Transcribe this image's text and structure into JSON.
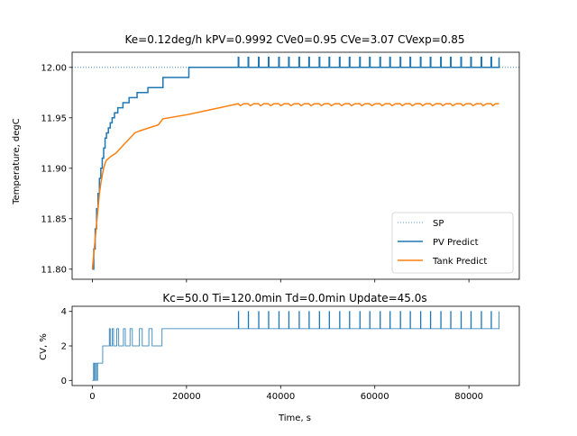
{
  "chart_data": [
    {
      "type": "line",
      "title": "Ke=0.12deg/h kPV=0.9992 CVe0=0.95 CVe=3.07 CVexp=0.85",
      "xlabel": "",
      "ylabel": "Temperature, degC",
      "xlim": [
        -4300,
        90700
      ],
      "ylim": [
        11.79,
        12.015
      ],
      "xticks": [
        0,
        20000,
        40000,
        60000,
        80000
      ],
      "yticks": [
        11.8,
        11.85,
        11.9,
        11.95,
        12.0
      ],
      "ytick_labels": [
        "11.80",
        "11.85",
        "11.90",
        "11.95",
        "12.00"
      ],
      "legend_position": "lower-right",
      "series": [
        {
          "name": "SP",
          "color": "#1f77b4",
          "style": "dotted",
          "x": [
            -4300,
            90700
          ],
          "y": [
            12.0,
            12.0
          ]
        },
        {
          "name": "PV Predict",
          "color": "#1f77b4",
          "style": "solid",
          "x": [
            0,
            300,
            600,
            900,
            1200,
            1500,
            1800,
            2100,
            2400,
            2700,
            3000,
            3400,
            3800,
            4200,
            4700,
            5400,
            6500,
            7800,
            9500,
            11800,
            15000,
            20500,
            86400
          ],
          "y": [
            11.8,
            11.82,
            11.84,
            11.86,
            11.875,
            11.89,
            11.9,
            11.91,
            11.92,
            11.93,
            11.935,
            11.94,
            11.945,
            11.95,
            11.955,
            11.96,
            11.965,
            11.97,
            11.975,
            11.98,
            11.99,
            12.0,
            12.0
          ],
          "spike_times": [
            31000,
            33100,
            35300,
            37400,
            39600,
            41700,
            43900,
            46000,
            48200,
            50300,
            52500,
            54600,
            56800,
            58900,
            61100,
            63200,
            65400,
            67500,
            69700,
            71800,
            74000,
            76100,
            78300,
            80400,
            82600,
            84700,
            86400
          ],
          "spike_peak": 12.01
        },
        {
          "name": "Tank Predict",
          "color": "#ff7f0e",
          "style": "solid",
          "x": [
            0,
            300,
            600,
            900,
            1200,
            1500,
            1800,
            2100,
            2400,
            2700,
            3000,
            3500,
            4000,
            5000,
            6000,
            7000,
            8000,
            9000,
            10000,
            12000,
            14000,
            15000,
            20000,
            25000,
            31000
          ],
          "y": [
            11.8,
            11.815,
            11.83,
            11.845,
            11.86,
            11.875,
            11.885,
            11.893,
            11.9,
            11.905,
            11.908,
            11.91,
            11.912,
            11.915,
            11.92,
            11.925,
            11.93,
            11.935,
            11.937,
            11.94,
            11.943,
            11.949,
            11.953,
            11.958,
            11.964
          ],
          "ripple_low": 11.962,
          "ripple_high": 11.964
        }
      ]
    },
    {
      "type": "line",
      "title": "Kc=50.0 Ti=120.0min Td=0.0min Update=45.0s",
      "xlabel": "Time, s",
      "ylabel": "CV, %",
      "xlim": [
        -4300,
        90700
      ],
      "ylim": [
        -0.3,
        4.3
      ],
      "xticks": [
        0,
        20000,
        40000,
        60000,
        80000
      ],
      "xtick_labels": [
        "0",
        "20000",
        "40000",
        "60000",
        "80000"
      ],
      "yticks": [
        0,
        2,
        4
      ],
      "ytick_labels": [
        "0",
        "2",
        "4"
      ],
      "series": [
        {
          "name": "",
          "color": "#1f77b4",
          "style": "solid",
          "x": [
            0,
            250,
            250,
            450,
            450,
            650,
            650,
            900,
            900,
            1100,
            1100,
            1300,
            1300,
            2200,
            2200,
            2500,
            2500,
            3600,
            3600,
            3800,
            3800,
            4200,
            4200,
            4500,
            4500,
            5200,
            5200,
            5600,
            5600,
            6600,
            6600,
            7000,
            7000,
            8000,
            8000,
            8500,
            8500,
            10000,
            10000,
            10600,
            10600,
            12000,
            12000,
            12700,
            12700,
            14800,
            14800,
            15200,
            15200,
            31000
          ],
          "y": [
            0,
            0,
            1,
            1,
            0,
            0,
            1,
            1,
            0,
            0,
            1,
            1,
            1,
            1,
            2,
            2,
            2,
            2,
            3,
            3,
            2,
            2,
            3,
            3,
            2,
            2,
            3,
            3,
            2,
            2,
            3,
            3,
            2,
            2,
            3,
            3,
            2,
            2,
            3,
            3,
            2,
            2,
            3,
            3,
            2,
            2,
            3,
            3,
            3,
            3
          ],
          "spike_times": [
            31000,
            33100,
            35300,
            37400,
            39600,
            41700,
            43900,
            46000,
            48200,
            50300,
            52500,
            54600,
            56800,
            58900,
            61100,
            63200,
            65400,
            67500,
            69700,
            71800,
            74000,
            76100,
            78300,
            80400,
            82600,
            84700,
            86400
          ],
          "spike_base": 3,
          "spike_peak": 4
        }
      ]
    }
  ]
}
